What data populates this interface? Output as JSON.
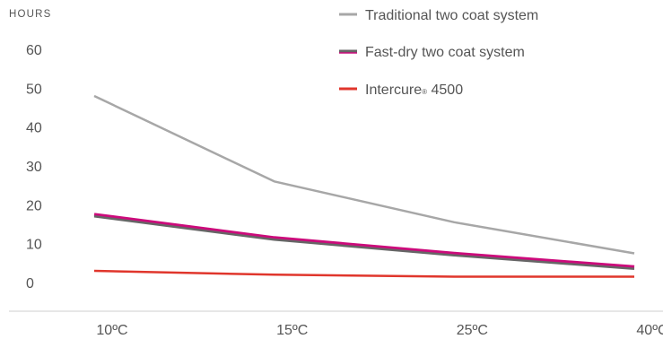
{
  "chart_data": {
    "type": "line",
    "title": "",
    "ylabel": "HOURS",
    "xlabel": "",
    "categories": [
      "10ºC",
      "15ºC",
      "25ºC",
      "40ºC"
    ],
    "ylim": [
      0,
      60
    ],
    "yticks": [
      0,
      10,
      20,
      30,
      40,
      50,
      60
    ],
    "grid": false,
    "legend_position": "top-right",
    "series": [
      {
        "name": "Traditional two coat system",
        "values": [
          48,
          26,
          15.5,
          7.5
        ],
        "color": "#a7a7a7"
      },
      {
        "name": "Fast-dry two coat system",
        "values": [
          17,
          11,
          7,
          3.5
        ],
        "color": "#666666",
        "accent_color": "#cc0a7b"
      },
      {
        "name": "Intercure",
        "name_mark": "®",
        "name_suffix": " 4500",
        "values": [
          3,
          2,
          1.5,
          1.5
        ],
        "color": "#e0362c"
      }
    ]
  }
}
